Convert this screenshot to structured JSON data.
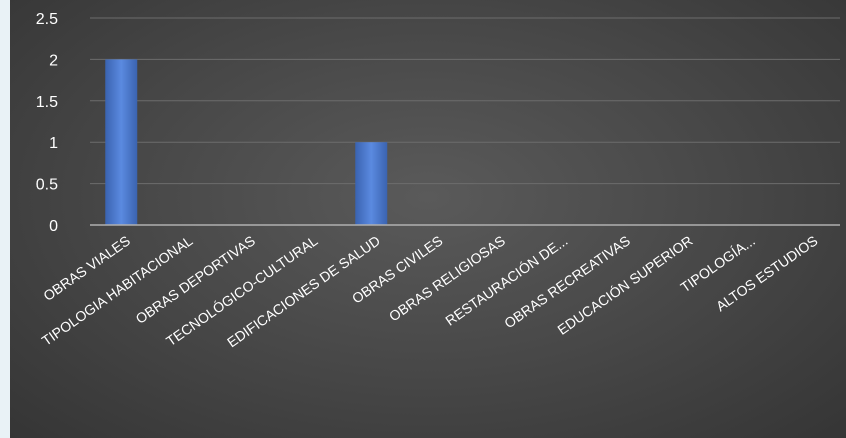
{
  "chart_data": {
    "type": "bar",
    "categories": [
      "OBRAS VIALES",
      "TIPOLOGIA HABITACIONAL",
      "OBRAS DEPORTIVAS",
      "TECNOLÓGICO-CULTURAL",
      "EDIFICACIONES DE SALUD",
      "OBRAS CIVILES",
      "OBRAS RELIGIOSAS",
      "RESTAURACIÓN DE...",
      "OBRAS RECREATIVAS",
      "EDUCACIÓN SUPERIOR",
      "TIPOLOGÍA...",
      "ALTOS ESTUDIOS"
    ],
    "values": [
      2,
      0,
      0,
      0,
      1,
      0,
      0,
      0,
      0,
      0,
      0,
      0
    ],
    "y_ticks": [
      "0",
      "0.5",
      "1",
      "1.5",
      "2",
      "2.5"
    ],
    "ylim": [
      0,
      2.5
    ],
    "grid": true,
    "legend": "none",
    "title": "",
    "xlabel": "",
    "ylabel": "",
    "colors": {
      "bar": "#4472c4",
      "bar_light": "#5b8ae0",
      "grid": "#6c6c6c",
      "axis": "#b0b0b0",
      "text": "#ffffff"
    }
  }
}
